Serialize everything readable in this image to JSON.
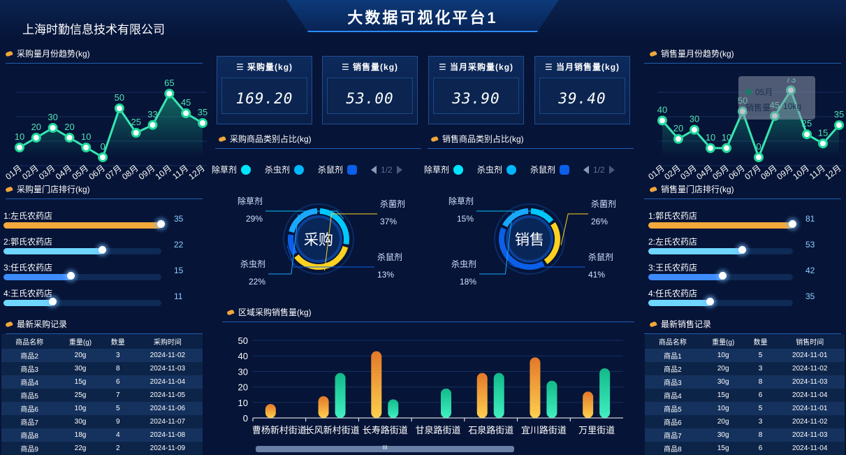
{
  "header": {
    "title": "大数据可视化平台1",
    "company": "上海时勤信息技术有限公司"
  },
  "kpis": [
    {
      "label": "☰ 采购量(kg)",
      "value": "169.20"
    },
    {
      "label": "☰ 销售量(kg)",
      "value": "53.00"
    },
    {
      "label": "☰ 当月采购量(kg)",
      "value": "33.90"
    },
    {
      "label": "☰ 当月销售量(kg)",
      "value": "39.40"
    }
  ],
  "sections": {
    "purchase_trend": "采购量月份趋势(kg)",
    "sales_trend": "销售量月份趋势(kg)",
    "purchase_category": "采购商品类别占比(kg)",
    "sales_category": "销售商品类别占比(kg)",
    "purchase_rank": "采购量门店排行(kg)",
    "sales_rank": "销售量门店排行(kg)",
    "region": "区域采购销售量(kg)",
    "latest_purchase": "最新采购记录",
    "latest_sales": "最新销售记录"
  },
  "chart_data": [
    {
      "type": "line",
      "id": "purchase_trend",
      "categories": [
        "01月",
        "02月",
        "03月",
        "04月",
        "05月",
        "06月",
        "07月",
        "08月",
        "09月",
        "10月",
        "11月",
        "12月"
      ],
      "values": [
        10,
        20,
        30,
        20,
        10,
        0,
        50,
        25,
        33,
        65,
        45,
        35
      ],
      "ylim": [
        0,
        75
      ]
    },
    {
      "type": "line",
      "id": "sales_trend",
      "categories": [
        "01月",
        "02月",
        "03月",
        "04月",
        "05月",
        "06月",
        "07月",
        "08月",
        "09月",
        "10月",
        "11月",
        "12月"
      ],
      "values": [
        40,
        20,
        30,
        10,
        10,
        50,
        0,
        45,
        73,
        25,
        15,
        35
      ],
      "ylim": [
        0,
        80
      ],
      "tooltip": {
        "title": "05月",
        "label": "销售量",
        "value": "10kg"
      }
    },
    {
      "type": "pie",
      "id": "purchase_category",
      "center_label": "采购",
      "legend": [
        "除草剂",
        "杀虫剂",
        "杀鼠剂"
      ],
      "pager": "1/2",
      "slices": [
        {
          "name": "除草剂",
          "value": 29,
          "label": "29%",
          "color": "#00c8ff"
        },
        {
          "name": "杀菌剂",
          "value": 37,
          "label": "37%",
          "color": "#ffd21f"
        },
        {
          "name": "杀鼠剂",
          "value": 13,
          "label": "13%",
          "color": "#0b5fe8"
        },
        {
          "name": "杀虫剂",
          "value": 22,
          "label": "22%",
          "color": "#1aa8ff"
        }
      ]
    },
    {
      "type": "pie",
      "id": "sales_category",
      "center_label": "销售",
      "legend": [
        "除草剂",
        "杀虫剂",
        "杀鼠剂"
      ],
      "pager": "1/2",
      "slices": [
        {
          "name": "除草剂",
          "value": 15,
          "label": "15%",
          "color": "#00c8ff"
        },
        {
          "name": "杀菌剂",
          "value": 26,
          "label": "26%",
          "color": "#ffd21f"
        },
        {
          "name": "杀鼠剂",
          "value": 41,
          "label": "41%",
          "color": "#0b5fe8"
        },
        {
          "name": "杀虫剂",
          "value": 18,
          "label": "18%",
          "color": "#1aa8ff"
        }
      ]
    },
    {
      "type": "bar",
      "id": "region",
      "categories": [
        "曹杨新村街道",
        "长风新村街道",
        "长寿路街道",
        "甘泉路街道",
        "石泉路街道",
        "宜川路街道",
        "万里街道"
      ],
      "series": [
        {
          "values": [
            9,
            14,
            43,
            0,
            29,
            39,
            17
          ],
          "color": "#f3a93b"
        },
        {
          "values": [
            0,
            29,
            12,
            19,
            29,
            24,
            32
          ],
          "color": "#1fd89a"
        }
      ],
      "yticks": [
        0,
        10,
        20,
        30,
        40,
        50
      ],
      "ylim": [
        0,
        50
      ]
    }
  ],
  "purchase_rank": [
    {
      "name": "1:左氏农药店",
      "value": 35,
      "color": "#f3a93b"
    },
    {
      "name": "2:郭氏农药店",
      "value": 22,
      "color": "#6fd6ff"
    },
    {
      "name": "3:任氏农药店",
      "value": 15,
      "color": "#3d8cff"
    },
    {
      "name": "4:王氏农药店",
      "value": 11,
      "color": "#6fd6ff"
    }
  ],
  "sales_rank": [
    {
      "name": "1:郭氏农药店",
      "value": 81,
      "color": "#f3a93b"
    },
    {
      "name": "2:左氏农药店",
      "value": 53,
      "color": "#6fd6ff"
    },
    {
      "name": "3:王氏农药店",
      "value": 42,
      "color": "#3d8cff"
    },
    {
      "name": "4:任氏农药店",
      "value": 35,
      "color": "#6fd6ff"
    }
  ],
  "purchase_table": {
    "headers": [
      "商品名称",
      "重量(g)",
      "数量",
      "采购时间"
    ],
    "rows": [
      [
        "商品2",
        "20g",
        "3",
        "2024-11-02"
      ],
      [
        "商品3",
        "30g",
        "8",
        "2024-11-03"
      ],
      [
        "商品4",
        "15g",
        "6",
        "2024-11-04"
      ],
      [
        "商品5",
        "25g",
        "7",
        "2024-11-05"
      ],
      [
        "商品6",
        "10g",
        "5",
        "2024-11-06"
      ],
      [
        "商品7",
        "30g",
        "9",
        "2024-11-07"
      ],
      [
        "商品8",
        "18g",
        "4",
        "2024-11-08"
      ],
      [
        "商品9",
        "22g",
        "2",
        "2024-11-09"
      ]
    ]
  },
  "sales_table": {
    "headers": [
      "商品名称",
      "重量(g)",
      "数量",
      "销售时间"
    ],
    "rows": [
      [
        "商品1",
        "10g",
        "5",
        "2024-11-01"
      ],
      [
        "商品2",
        "20g",
        "3",
        "2024-11-02"
      ],
      [
        "商品3",
        "30g",
        "8",
        "2024-11-03"
      ],
      [
        "商品4",
        "15g",
        "6",
        "2024-11-04"
      ],
      [
        "商品5",
        "10g",
        "5",
        "2024-11-01"
      ],
      [
        "商品6",
        "20g",
        "3",
        "2024-11-02"
      ],
      [
        "商品7",
        "30g",
        "8",
        "2024-11-03"
      ],
      [
        "商品8",
        "15g",
        "6",
        "2024-11-04"
      ]
    ]
  },
  "scrollbar": {
    "grip": "III"
  }
}
